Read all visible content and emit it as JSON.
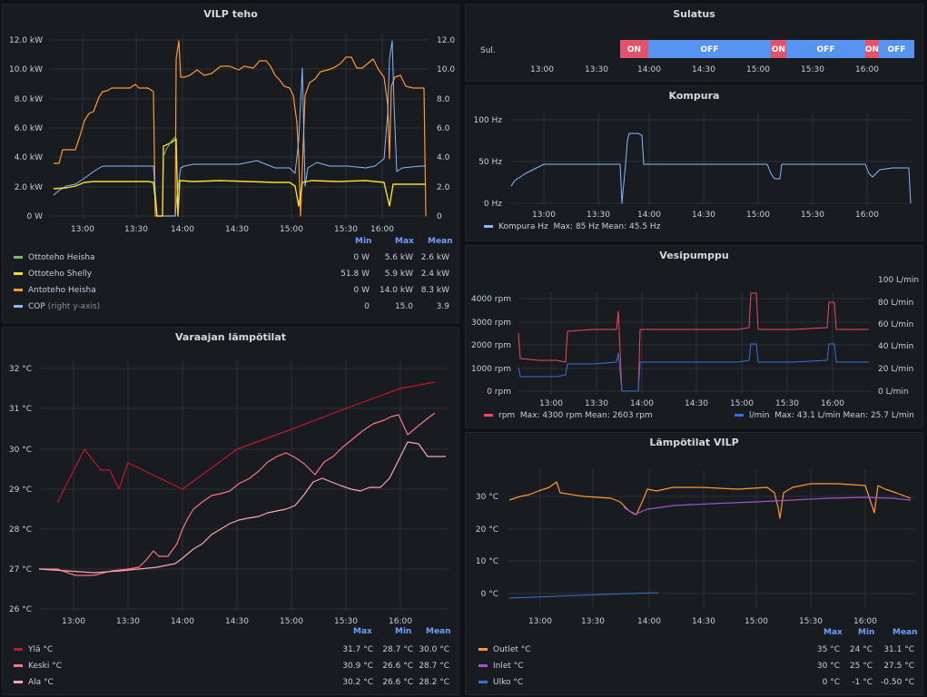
{
  "colors": {
    "green": "#73bf69",
    "yellow": "#fade2a",
    "orange": "#ff9830",
    "blue": "#8ab8ff",
    "red": "#f2495c",
    "darkred": "#c4162a",
    "pink": "#ff7383",
    "lightpink": "#ffa6b0",
    "purple": "#a352cc",
    "ublue": "#3274d9",
    "on": "#e0536a",
    "off": "#5794f2"
  },
  "time_ticks": [
    "13:00",
    "13:30",
    "14:00",
    "14:30",
    "15:00",
    "15:30",
    "16:00"
  ],
  "vilp": {
    "title": "VILP teho",
    "yleft": [
      "12.0 kW",
      "10.0 kW",
      "8.0 kW",
      "6.0 kW",
      "4.0 kW",
      "2.0 kW",
      "0 W"
    ],
    "yright": [
      "12.0",
      "10.0",
      "8.0",
      "6.0",
      "4.0",
      "2.0",
      "0"
    ],
    "headers": [
      "Min",
      "Max",
      "Mean"
    ],
    "legend": [
      {
        "name": "Ottoteho Heisha",
        "suffix": "",
        "min": "0 W",
        "max": "5.6 kW",
        "mean": "2.6 kW",
        "color": "#73bf69"
      },
      {
        "name": "Ottoteho Shelly",
        "suffix": "",
        "min": "51.8 W",
        "max": "5.9 kW",
        "mean": "2.4 kW",
        "color": "#fade2a"
      },
      {
        "name": "Antoteho Heisha",
        "suffix": "",
        "min": "0 W",
        "max": "14.0 kW",
        "mean": "8.3 kW",
        "color": "#ff9830"
      },
      {
        "name": "COP",
        "suffix": "(right y-axis)",
        "min": "0",
        "max": "15.0",
        "mean": "3.9",
        "color": "#8ab8ff"
      }
    ]
  },
  "varaaja": {
    "title": "Varaajan lämpötilat",
    "yticks": [
      "32 °C",
      "31 °C",
      "30 °C",
      "29 °C",
      "28 °C",
      "27 °C",
      "26 °C"
    ],
    "headers": [
      "Max",
      "Min",
      "Mean"
    ],
    "legend": [
      {
        "name": "Ylä °C",
        "max": "31.7 °C",
        "min": "28.7 °C",
        "mean": "30.0 °C",
        "color": "#c4162a"
      },
      {
        "name": "Keski °C",
        "max": "30.9 °C",
        "min": "26.6 °C",
        "mean": "28.7 °C",
        "color": "#ff7383"
      },
      {
        "name": "Ala °C",
        "max": "30.2 °C",
        "min": "26.6 °C",
        "mean": "28.2 °C",
        "color": "#ffa6b0"
      }
    ]
  },
  "sulatus": {
    "title": "Sulatus",
    "label": "Sul.",
    "segments": [
      {
        "label": "ON",
        "state": "on"
      },
      {
        "label": "OFF",
        "state": "off"
      },
      {
        "label": "ON",
        "state": "on"
      },
      {
        "label": "OFF",
        "state": "off"
      },
      {
        "label": "ON",
        "state": "on"
      },
      {
        "label": "OFF",
        "state": "off"
      }
    ]
  },
  "kompura": {
    "title": "Kompura",
    "yticks": [
      "100 Hz",
      "50 Hz",
      "0 Hz"
    ],
    "legend": {
      "name": "Kompura Hz",
      "stats": "Max: 85 Hz   Mean: 45.5 Hz"
    }
  },
  "vesi": {
    "title": "Vesipumppu",
    "yleft": [
      "4000 rpm",
      "3000 rpm",
      "2000 rpm",
      "1000 rpm",
      "0 rpm"
    ],
    "yright": [
      "100 L/min",
      "80 L/min",
      "60 L/min",
      "40 L/min",
      "20 L/min",
      "0 L/min"
    ],
    "legend": [
      {
        "name": "rpm",
        "stats": "Max: 4300 rpm   Mean: 2603 rpm"
      },
      {
        "name": "l/min",
        "stats": "Max: 43.1 L/min   Mean: 25.7 L/min"
      }
    ]
  },
  "lampo": {
    "title": "Lämpötilat VILP",
    "yticks": [
      "30 °C",
      "20 °C",
      "10 °C",
      "0 °C"
    ],
    "headers": [
      "Max",
      "Min",
      "Mean"
    ],
    "legend": [
      {
        "name": "Outlet °C",
        "max": "35 °C",
        "min": "24 °C",
        "mean": "31.1 °C",
        "color": "#ff9830"
      },
      {
        "name": "Inlet °C",
        "max": "30 °C",
        "min": "25 °C",
        "mean": "27.5 °C",
        "color": "#a352cc"
      },
      {
        "name": "Ulko °C",
        "max": "0 °C",
        "min": "-1 °C",
        "mean": "-0.50 °C",
        "color": "#3274d9"
      }
    ]
  }
}
